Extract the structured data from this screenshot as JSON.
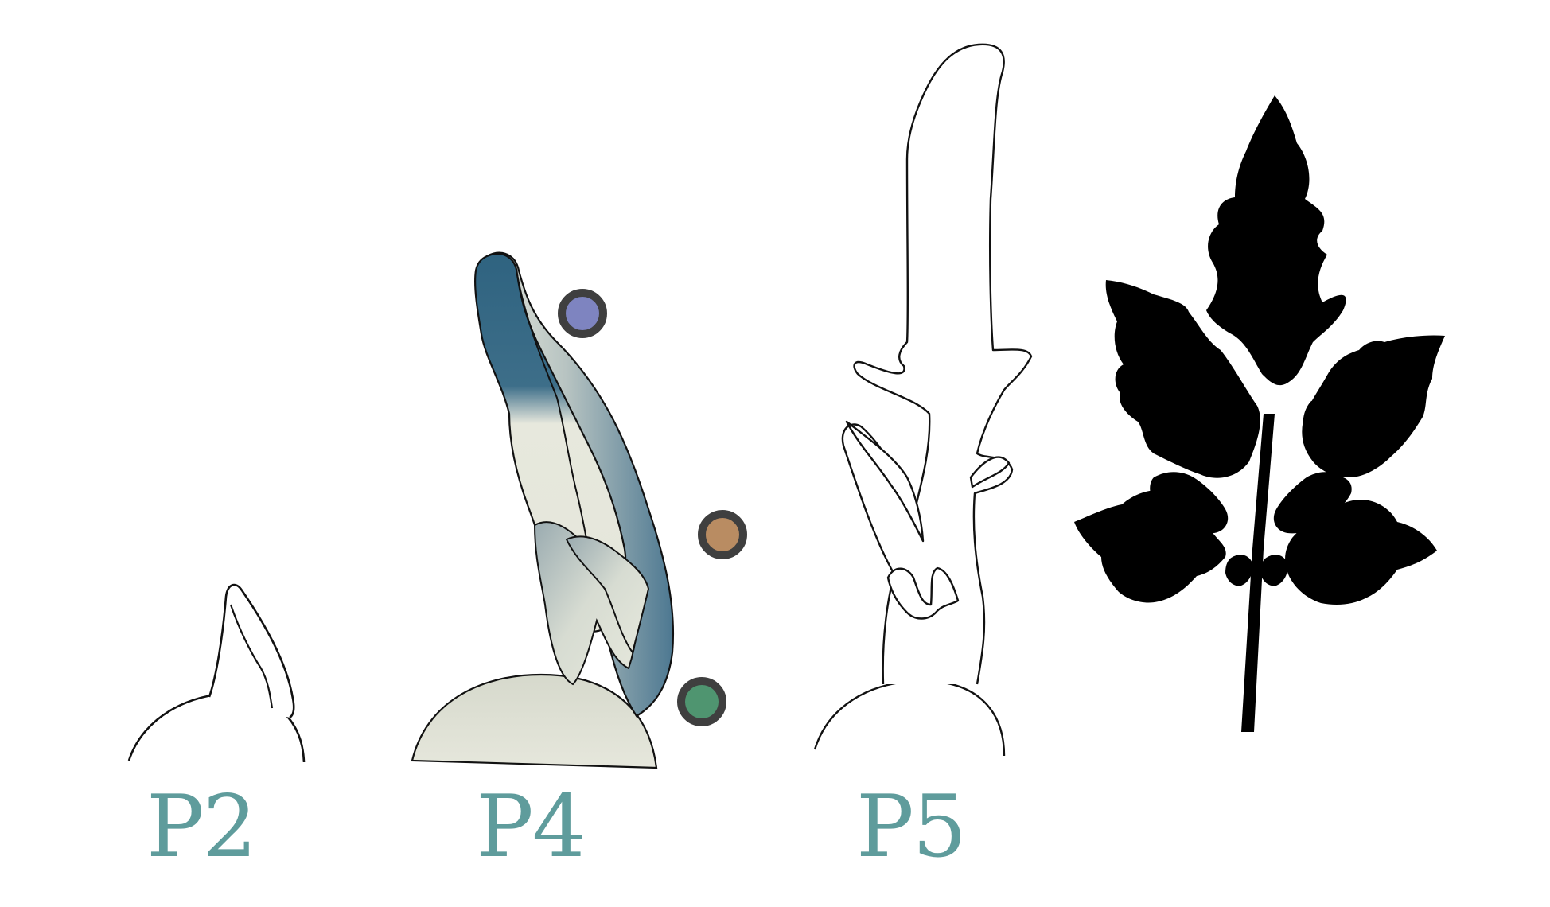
{
  "stages": [
    {
      "label": "P2"
    },
    {
      "label": "P4"
    },
    {
      "label": "P5"
    }
  ],
  "markers": [
    {
      "name": "purple-marker",
      "color": "#7e84c0"
    },
    {
      "name": "tan-marker",
      "color": "#b98c62"
    },
    {
      "name": "green-marker",
      "color": "#4f9570"
    }
  ],
  "colors": {
    "label": "#5f9c9c",
    "outline": "#111111",
    "marker_ring": "#3f3f3f",
    "p4_dark": "#2f6380",
    "p4_mid": "#5d8399",
    "p4_pale": "#e6e8dc",
    "dome_fill": "#dfe1d5",
    "leaf_silhouette": "#000000"
  }
}
